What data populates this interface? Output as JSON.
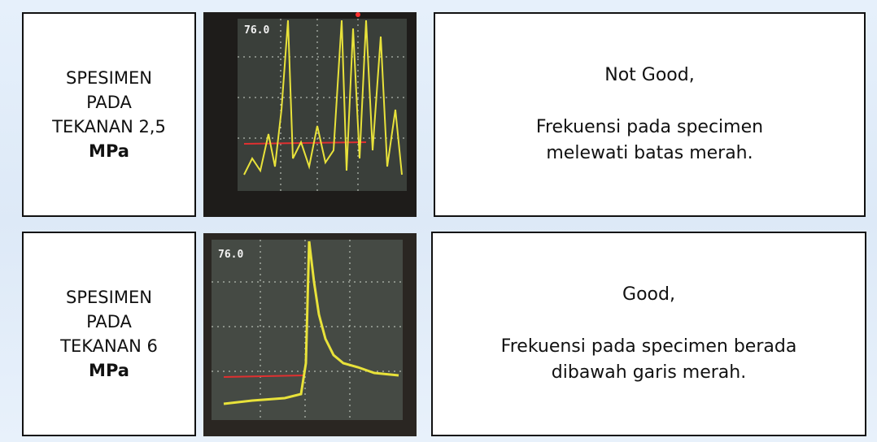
{
  "rows": [
    {
      "label": [
        "SPESIMEN",
        "PADA",
        "TEKANAN 2,5",
        "MPa"
      ],
      "readout": "76.0",
      "verdict": "Not Good,",
      "description": "Frekuensi pada specimen melewati batas merah."
    },
    {
      "label": [
        "SPESIMEN",
        "PADA",
        "TEKANAN 6",
        "MPa"
      ],
      "readout": "76.0",
      "verdict": "Good,",
      "description": "Frekuensi pada specimen berada dibawah garis merah."
    }
  ]
}
